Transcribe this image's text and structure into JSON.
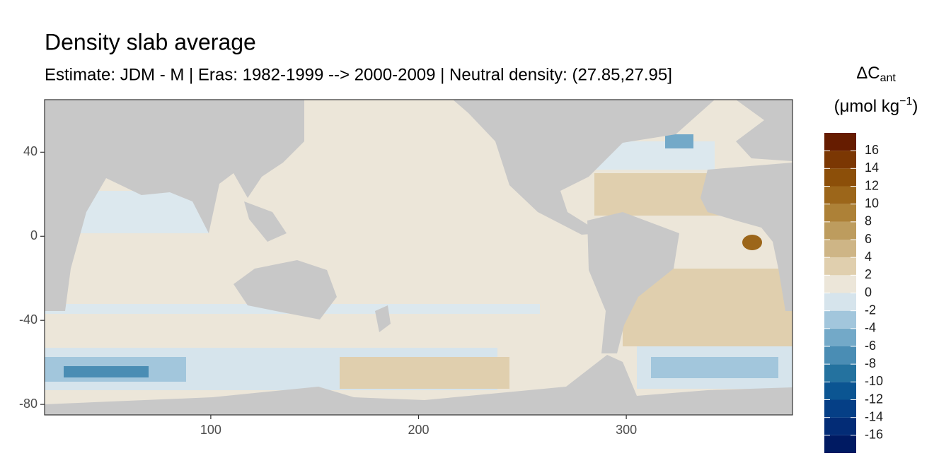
{
  "chart_data": {
    "type": "map",
    "title": "Density slab average",
    "subtitle": "Estimate: JDM - M | Eras: 1982-1999 --> 2000-2009 | Neutral density: (27.85,27.95]",
    "legend_title": {
      "symbol": "ΔC",
      "subscript": "ant",
      "unit": "(μmol kg",
      "unit_power": "−1",
      "unit_close": ")"
    },
    "xlim": [
      20,
      380
    ],
    "ylim": [
      -85,
      65
    ],
    "xticks": [
      100,
      200,
      300
    ],
    "yticks": [
      40,
      0,
      -40,
      -80
    ],
    "legend_limits": [
      -18,
      18
    ],
    "legend_breaks": [
      -16,
      -14,
      -12,
      -10,
      -8,
      -6,
      -4,
      -2,
      0,
      2,
      4,
      6,
      8,
      10,
      12,
      14,
      16
    ],
    "legend_colors": [
      "#001a62",
      "#032c76",
      "#053f86",
      "#0b5592",
      "#24729f",
      "#4a8db4",
      "#73a9c8",
      "#a2c6dc",
      "#d6e4ec",
      "#ece6d9",
      "#e0cfae",
      "#ceb586",
      "#bd9c5e",
      "#ad8137",
      "#9c661a",
      "#8c4f09",
      "#7b3703",
      "#661c00"
    ],
    "land_color": "#c8c8c8"
  }
}
